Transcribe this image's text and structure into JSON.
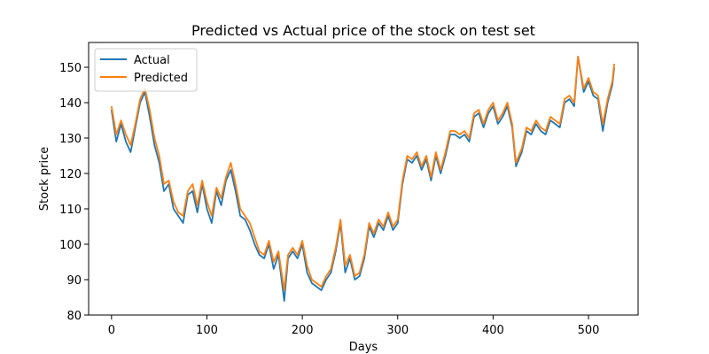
{
  "chart_data": {
    "type": "line",
    "title": "Predicted vs Actual price of the stock on test set",
    "xlabel": "Days",
    "ylabel": "Stock price",
    "xlim": [
      -24,
      552
    ],
    "ylim": [
      80,
      157
    ],
    "xticks": [
      0,
      100,
      200,
      300,
      400,
      500
    ],
    "yticks": [
      80,
      90,
      100,
      110,
      120,
      130,
      140,
      150
    ],
    "grid": false,
    "legend": "upper-left",
    "series": [
      {
        "name": "Actual",
        "color": "#1f77b4",
        "x": [
          0,
          5,
          10,
          15,
          20,
          25,
          30,
          35,
          40,
          45,
          50,
          55,
          60,
          65,
          70,
          75,
          80,
          85,
          90,
          95,
          100,
          105,
          110,
          115,
          120,
          125,
          130,
          135,
          140,
          145,
          150,
          155,
          160,
          165,
          170,
          175,
          181,
          185,
          190,
          195,
          200,
          205,
          210,
          215,
          220,
          225,
          230,
          235,
          240,
          245,
          250,
          255,
          260,
          265,
          270,
          275,
          280,
          285,
          290,
          295,
          300,
          305,
          310,
          315,
          320,
          325,
          330,
          335,
          340,
          345,
          350,
          355,
          360,
          365,
          370,
          375,
          380,
          385,
          390,
          395,
          400,
          405,
          410,
          415,
          420,
          424,
          430,
          435,
          440,
          445,
          450,
          455,
          460,
          465,
          470,
          475,
          480,
          485,
          489,
          495,
          500,
          505,
          510,
          515,
          520,
          525,
          527
        ],
        "y": [
          138,
          129,
          134,
          129,
          126,
          133,
          140,
          143,
          136,
          128,
          123,
          115,
          117,
          110,
          108,
          106,
          114,
          115,
          109,
          117,
          110,
          106,
          115,
          111,
          118,
          121,
          115,
          108,
          107,
          104,
          100,
          97,
          96,
          100,
          93,
          97,
          84,
          96,
          98,
          96,
          100,
          92,
          89,
          88,
          87,
          90,
          92,
          98,
          106,
          92,
          96,
          90,
          91,
          96,
          105,
          102,
          106,
          104,
          108,
          104,
          106,
          117,
          124,
          123,
          125,
          121,
          124,
          118,
          125,
          120,
          125,
          131,
          131,
          130,
          131,
          129,
          136,
          137,
          133,
          137,
          139,
          134,
          136,
          139,
          133,
          122,
          126,
          132,
          131,
          134,
          132,
          131,
          135,
          134,
          133,
          140,
          141,
          139,
          153,
          143,
          146,
          142,
          141,
          132,
          140,
          145,
          150
        ]
      },
      {
        "name": "Predicted",
        "color": "#ff7f0e",
        "x": [
          0,
          5,
          10,
          15,
          20,
          25,
          30,
          35,
          40,
          45,
          50,
          55,
          60,
          65,
          70,
          75,
          80,
          85,
          90,
          95,
          100,
          105,
          110,
          115,
          120,
          125,
          130,
          135,
          140,
          145,
          150,
          155,
          160,
          165,
          170,
          175,
          181,
          185,
          190,
          195,
          200,
          205,
          210,
          215,
          220,
          225,
          230,
          235,
          240,
          245,
          250,
          255,
          260,
          265,
          270,
          275,
          280,
          285,
          290,
          295,
          300,
          305,
          310,
          315,
          320,
          325,
          330,
          335,
          340,
          345,
          350,
          355,
          360,
          365,
          370,
          375,
          380,
          385,
          390,
          395,
          400,
          405,
          410,
          415,
          420,
          424,
          430,
          435,
          440,
          445,
          450,
          455,
          460,
          465,
          470,
          475,
          480,
          485,
          489,
          495,
          500,
          505,
          510,
          515,
          520,
          525,
          527
        ],
        "y": [
          139,
          131,
          135,
          131,
          128,
          134,
          141,
          144,
          138,
          130,
          125,
          117,
          118,
          112,
          109,
          108,
          115,
          117,
          111,
          118,
          112,
          108,
          116,
          113,
          119,
          123,
          117,
          110,
          108,
          106,
          102,
          98,
          97,
          101,
          95,
          98,
          87,
          97,
          99,
          97,
          101,
          94,
          90,
          89,
          88,
          91,
          93,
          99,
          107,
          94,
          97,
          91,
          92,
          97,
          106,
          103,
          107,
          105,
          109,
          105,
          107,
          118,
          125,
          124,
          126,
          122,
          125,
          119,
          126,
          121,
          126,
          132,
          132,
          131,
          132,
          130,
          137,
          138,
          134,
          138,
          140,
          135,
          137,
          140,
          134,
          123,
          127,
          133,
          132,
          135,
          133,
          132,
          136,
          135,
          134,
          141,
          142,
          140,
          153,
          144,
          147,
          143,
          142,
          134,
          141,
          146,
          151
        ]
      }
    ]
  }
}
